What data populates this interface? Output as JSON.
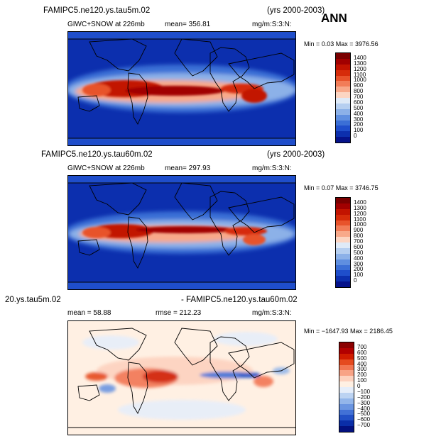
{
  "season": "ANN",
  "panels": [
    {
      "case": "FAMIPC5.ne120.ys.tau5m.02",
      "years": "(yrs 2000-2003)",
      "field": "GIWC+SNOW at 226mb",
      "stat": "mean= 356.81",
      "units": "mg/m:S:3:N:",
      "minmax": "Min =   0.03 Max = 3976.56",
      "colorbar_labels": [
        "1400",
        "1300",
        "1200",
        "1100",
        "1000",
        "900",
        "800",
        "700",
        "600",
        "500",
        "400",
        "300",
        "200",
        "100",
        "0"
      ]
    },
    {
      "case": "FAMIPC5.ne120.ys.tau60m.02",
      "years": "(yrs 2000-2003)",
      "field": "GIWC+SNOW at 226mb",
      "stat": "mean= 297.93",
      "units": "mg/m:S:3:N:",
      "minmax": "Min =   0.07 Max = 3746.75",
      "colorbar_labels": [
        "1400",
        "1300",
        "1200",
        "1100",
        "1000",
        "900",
        "800",
        "700",
        "600",
        "500",
        "400",
        "300",
        "200",
        "100",
        "0"
      ]
    },
    {
      "case_left": "20.ys.tau5m.02",
      "case_right": "- FAMIPC5.ne120.ys.tau60m.02",
      "stat": "mean =   58.88",
      "rmse": "rmse =  212.23",
      "units": "mg/m:S:3:N:",
      "minmax": "Min = −1647.93 Max = 2186.45",
      "colorbar_labels": [
        "700",
        "600",
        "500",
        "400",
        "300",
        "200",
        "100",
        "0",
        "−100",
        "−200",
        "−300",
        "−400",
        "−500",
        "−600",
        "−700"
      ]
    }
  ],
  "colors": {
    "abs_scale": [
      "#7a0000",
      "#a10000",
      "#c21300",
      "#d62c0a",
      "#e8532b",
      "#f27d58",
      "#f8a98a",
      "#fcd5c2",
      "#dfeaf7",
      "#b6cff0",
      "#8cb1e8",
      "#5f8fe0",
      "#3b6fd6",
      "#1f4ecb",
      "#0c2fae",
      "#05128a"
    ],
    "diff_scale": [
      "#8b0000",
      "#b20000",
      "#d01c00",
      "#e54a1f",
      "#f27652",
      "#f8a386",
      "#fdd2bf",
      "#fff0e3",
      "#e6eefa",
      "#bcd3f2",
      "#93b6ea",
      "#6a95e1",
      "#4271d6",
      "#2250c6",
      "#0a2ea8",
      "#03117f"
    ]
  }
}
